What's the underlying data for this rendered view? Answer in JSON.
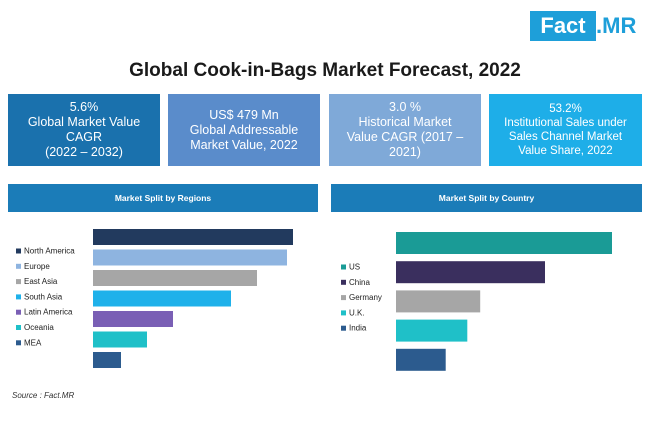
{
  "brand": {
    "logo_left": "Fact",
    "logo_right": ".MR",
    "color": "#1e9fd9"
  },
  "title": "Global Cook-in-Bags Market Forecast, 2022",
  "kpis": [
    {
      "text": "5.6%\nGlobal Market Value\nCAGR\n(2022 – 2032)",
      "color": "#1a71ad"
    },
    {
      "text": "US$ 479 Mn\nGlobal Addressable\nMarket Value, 2022",
      "color": "#5a8ccb"
    },
    {
      "text": "3.0 %\nHistorical Market\nValue CAGR (2017 –\n2021)",
      "color": "#7fa9d8"
    },
    {
      "text": "53.2%\nInstitutional Sales under\nSales Channel Market\nValue Share, 2022",
      "color": "#1eaee8"
    }
  ],
  "source": "Source : Fact.MR",
  "chart_data": [
    {
      "type": "bar",
      "orientation": "horizontal",
      "title": "Market Split by Regions",
      "categories": [
        "North America",
        "Europe",
        "East Asia",
        "South Asia",
        "Latin America",
        "Oceania",
        "MEA"
      ],
      "values": [
        100,
        97,
        82,
        69,
        40,
        27,
        14
      ],
      "colors": [
        "#223a5e",
        "#8eb4e0",
        "#a6a6a6",
        "#1fb1ea",
        "#7a5fb5",
        "#1fc0c8",
        "#2c5b8e"
      ],
      "legend_position": "left",
      "grid": false
    },
    {
      "type": "bar",
      "orientation": "horizontal",
      "title": "Market Split by Country",
      "categories": [
        "US",
        "China",
        "Germany",
        "U.K.",
        "India"
      ],
      "values": [
        100,
        69,
        39,
        33,
        23
      ],
      "colors": [
        "#1a9b96",
        "#3a2f5e",
        "#a6a6a6",
        "#1fc0c8",
        "#2c5b8e"
      ],
      "legend_position": "left",
      "grid": false
    }
  ]
}
